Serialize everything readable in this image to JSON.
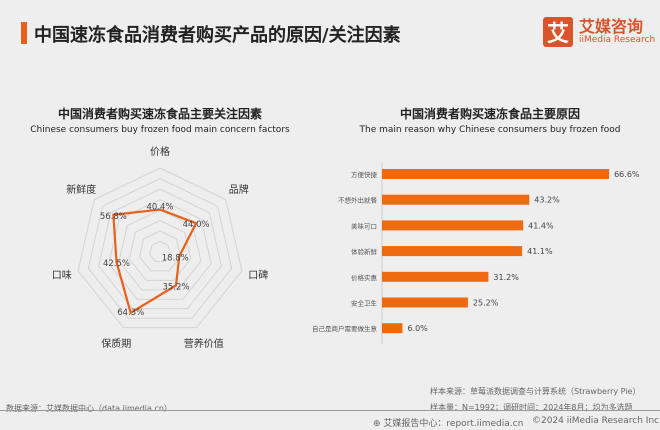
{
  "header": {
    "title": "中国速冻食品消费者购买产品的原因/关注因素",
    "logo_mark": "艾",
    "logo_cn": "艾媒咨询",
    "logo_en": "iiMedia Research"
  },
  "colors": {
    "accent": "#e8601a",
    "bar": "#ee6a12",
    "grid": "#d4d4d4"
  },
  "chart_data": [
    {
      "type": "radar",
      "title": "中国消费者购买速冻食品主要关注因素",
      "subtitle": "Chinese consumers buy frozen food main concern factors",
      "categories": [
        "价格",
        "品牌",
        "口碑",
        "营养价值",
        "保质期",
        "口味",
        "新鲜度"
      ],
      "values": [
        40.4,
        44.0,
        18.8,
        35.2,
        64.3,
        42.5,
        56.8
      ],
      "labels": [
        "40.4%",
        "44.0%",
        "18.8%",
        "35.2%",
        "64.3%",
        "42.5%",
        "56.8%"
      ],
      "grid": true
    },
    {
      "type": "bar",
      "orientation": "horizontal",
      "title": "中国消费者购买速冻食品主要原因",
      "subtitle": "The main reason why Chinese consumers buy frozen food",
      "categories": [
        "方便快捷",
        "不想外出就餐",
        "美味可口",
        "体验新鲜",
        "价格实惠",
        "安全卫生",
        "自己是商户需要做生意"
      ],
      "values": [
        66.6,
        43.2,
        41.4,
        41.1,
        31.2,
        25.2,
        6.0
      ],
      "labels": [
        "66.6%",
        "43.2%",
        "41.4%",
        "41.1%",
        "31.2%",
        "25.2%",
        "6.0%"
      ]
    }
  ],
  "footer": {
    "source": "数据来源：艾媒数据中心（data.iimedia.cn）",
    "sample_source": "样本来源：草莓派数据调查与计算系统（Strawberry Pie）",
    "sample_size": "样本量：N=1992；调研时间：2024年8月；均为多选题",
    "report": "艾媒报告中心：report.iimedia.cn",
    "copyright": "©2024  iiMedia Research Inc"
  }
}
